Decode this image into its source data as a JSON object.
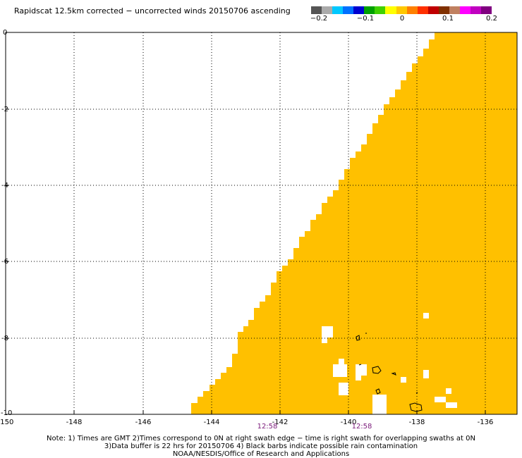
{
  "title": "Rapidscat 12.5km corrected − uncorrected winds 20150706 ascending",
  "colorbar": {
    "colors": [
      "#555555",
      "#aaaaaa",
      "#00c8ff",
      "#0070ff",
      "#0000d0",
      "#00a000",
      "#40d000",
      "#ffff00",
      "#ffc800",
      "#ff8000",
      "#ff3000",
      "#c00000",
      "#803000",
      "#c08060",
      "#ff00ff",
      "#c000c0",
      "#800080"
    ],
    "labels": [
      "−0.2",
      "−0.1",
      "0",
      "0.1",
      "0.2"
    ]
  },
  "axes": {
    "x_ticks": [
      "-150",
      "-148",
      "-146",
      "-144",
      "-142",
      "-140",
      "-138",
      "-136"
    ],
    "y_ticks": [
      "0",
      "-2",
      "-4",
      "-6",
      "-8",
      "-10"
    ],
    "lon_range": [
      -150,
      -135
    ],
    "lat_range": [
      -10,
      0
    ],
    "grid": "dotted"
  },
  "swath_color": "#ffc000",
  "time_labels": [
    "12:58",
    "12:58"
  ],
  "notes": [
    "Note: 1) Times are GMT 2)Times correspond to 0N at right swath edge − time is right swath for overlapping swaths at 0N",
    "3)Data buffer is 22 hrs for 20150706 4) Black barbs indicate possible rain contamination",
    "NOAA/NESDIS/Office of Research and Applications"
  ]
}
